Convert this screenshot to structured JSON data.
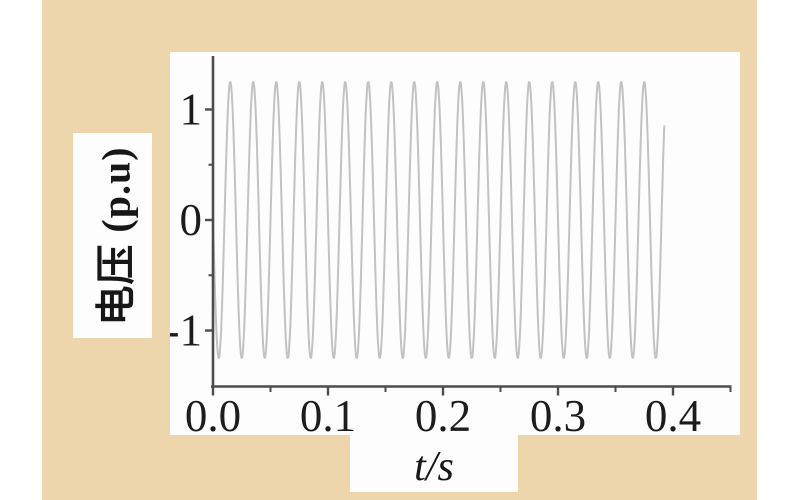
{
  "colors": {
    "background_tan": "#edd5ac",
    "panel_white": "#fdfdfd",
    "axis": "#4d4d4d",
    "tick_label": "#1c1c1c",
    "waveform": "#c2c2c2"
  },
  "chart_data": {
    "type": "line",
    "title": "",
    "ylabel": "电压 (p.u)",
    "xlabel": "t/s",
    "xlim": [
      0,
      0.45
    ],
    "ylim": [
      -1.5,
      1.5
    ],
    "grid": false,
    "legend": "none",
    "x_ticks": [
      {
        "value": 0.0,
        "label": "0.0"
      },
      {
        "value": 0.1,
        "label": "0.1"
      },
      {
        "value": 0.2,
        "label": "0.2"
      },
      {
        "value": 0.3,
        "label": "0.3"
      },
      {
        "value": 0.4,
        "label": "0.4"
      }
    ],
    "x_minor_ticks": [
      0.05,
      0.15,
      0.25,
      0.35,
      0.45
    ],
    "y_ticks": [
      {
        "value": 1,
        "label": "1"
      },
      {
        "value": 0,
        "label": "0"
      },
      {
        "value": -1,
        "label": "-1"
      }
    ],
    "y_minor_ticks": [
      0.5,
      -0.5
    ],
    "series": [
      {
        "name": "voltage",
        "signal": "sine",
        "amplitude_pu": 1.25,
        "frequency_hz": 50,
        "phase_deg": 180,
        "t_start_s": 0,
        "t_end_s": 0.3925
      }
    ]
  }
}
